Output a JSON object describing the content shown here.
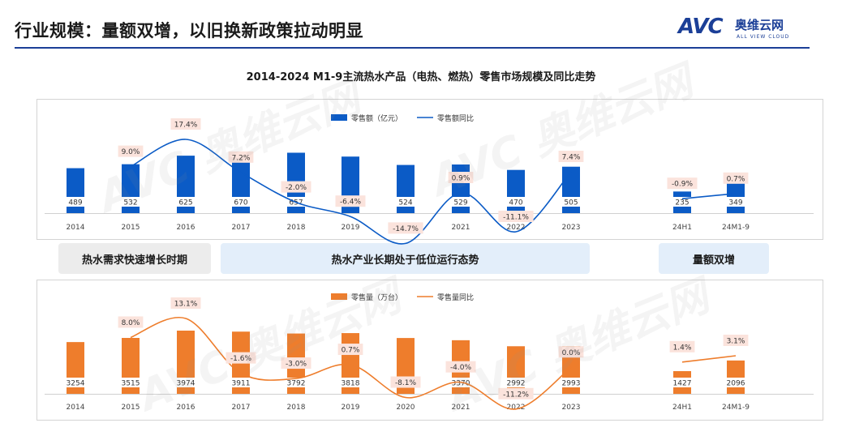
{
  "header": {
    "title": "行业规模：量额双增，以旧换新政策拉动明显",
    "logo": {
      "mark": "AVC",
      "cn": "奥维云网",
      "en": "ALL VIEW CLOUD"
    }
  },
  "chart_title": "2014-2024 M1-9主流热水产品（电热、燃热）零售市场规模及同比走势",
  "bands": [
    {
      "label": "热水需求快速增长时期"
    },
    {
      "label": "热水产业长期处于低位运行态势"
    },
    {
      "label": "量额双增"
    }
  ],
  "watermark": {
    "mark": "AVC",
    "cn": "奥维云网",
    "en": "ALL VIEW CLOUD"
  },
  "colors": {
    "blue": "#0b5bc6",
    "orange": "#ee7d2c",
    "brand": "#1b3f97",
    "label_bg": "#fbe3dc"
  },
  "chart_data": [
    {
      "type": "bar",
      "categories": [
        "2014",
        "2015",
        "2016",
        "2017",
        "2018",
        "2019",
        "2020",
        "2021",
        "2022",
        "2023",
        "24H1",
        "24M1-9"
      ],
      "series": [
        {
          "name": "零售额（亿元）",
          "kind": "bar",
          "color": "#0b5bc6",
          "values": [
            489,
            532,
            625,
            670,
            657,
            615,
            524,
            529,
            470,
            505,
            235,
            349
          ]
        },
        {
          "name": "零售额同比",
          "kind": "line",
          "color": "#0b5bc6",
          "values": [
            null,
            9.0,
            17.4,
            7.2,
            -2.0,
            -6.4,
            -14.7,
            0.9,
            -11.1,
            7.4,
            -0.9,
            0.7
          ],
          "labels": [
            "",
            "9.0%",
            "17.4%",
            "7.2%",
            "-2.0%",
            "-6.4%",
            "-14.7%",
            "0.9%",
            "-11.1%",
            "7.4%",
            "-0.9%",
            "0.7%"
          ]
        }
      ],
      "legend": "top",
      "grid": false
    },
    {
      "type": "bar",
      "categories": [
        "2014",
        "2015",
        "2016",
        "2017",
        "2018",
        "2019",
        "2020",
        "2021",
        "2022",
        "2023",
        "24H1",
        "24M1-9"
      ],
      "series": [
        {
          "name": "零售量（万台）",
          "kind": "bar",
          "color": "#ee7d2c",
          "values": [
            3254,
            3515,
            3974,
            3911,
            3792,
            3818,
            3510,
            3370,
            2992,
            2993,
            1427,
            2096
          ]
        },
        {
          "name": "零售量同比",
          "kind": "line",
          "color": "#ee7d2c",
          "values": [
            null,
            8.0,
            13.1,
            -1.6,
            -3.0,
            0.7,
            -8.1,
            -4.0,
            -11.2,
            0.0,
            1.4,
            3.1
          ],
          "labels": [
            "",
            "8.0%",
            "13.1%",
            "-1.6%",
            "-3.0%",
            "0.7%",
            "-8.1%",
            "-4.0%",
            "-11.2%",
            "0.0%",
            "1.4%",
            "3.1%"
          ]
        }
      ],
      "legend": "top",
      "grid": false
    }
  ]
}
